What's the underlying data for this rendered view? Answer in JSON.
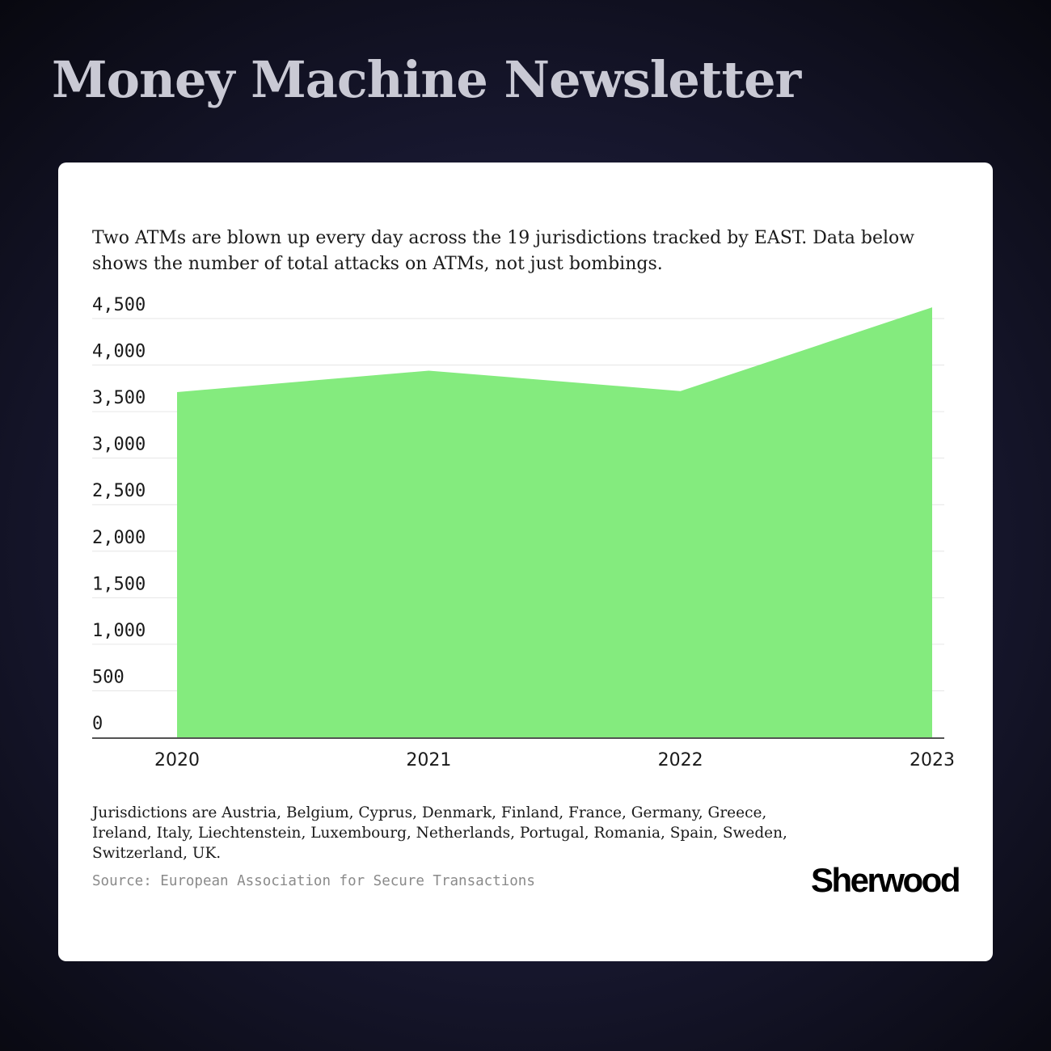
{
  "header": {
    "title": "Money Machine Newsletter"
  },
  "card": {
    "subtitle": "Two ATMs are blown up every day across the 19 jurisdictions tracked by EAST. Data below shows the number of total attacks on ATMs, not just bombings.",
    "footnote": "Jurisdictions are Austria, Belgium, Cyprus, Denmark, Finland, France, Germany, Greece, Ireland, Italy, Liechtenstein, Luxembourg, Netherlands, Portugal, Romania, Spain, Sweden, Switzerland, UK.",
    "source": "Source: European Association for Secure Transactions",
    "logo": "Sherwood"
  },
  "chart_data": {
    "type": "area",
    "x": [
      "2020",
      "2021",
      "2022",
      "2023"
    ],
    "values": [
      3710,
      3940,
      3720,
      4620
    ],
    "ylim": [
      0,
      4500
    ],
    "yticks": [
      0,
      500,
      1000,
      1500,
      2000,
      2500,
      3000,
      3500,
      4000,
      4500
    ],
    "ytick_labels": [
      "0",
      "500",
      "1,000",
      "1,500",
      "2,000",
      "2,500",
      "3,000",
      "3,500",
      "4,000",
      "4,500"
    ],
    "grid": true,
    "legend": "none",
    "colors": {
      "fill": "#84eb7e",
      "gridline": "#e6e6e6",
      "axis": "#1a1a1a"
    }
  }
}
